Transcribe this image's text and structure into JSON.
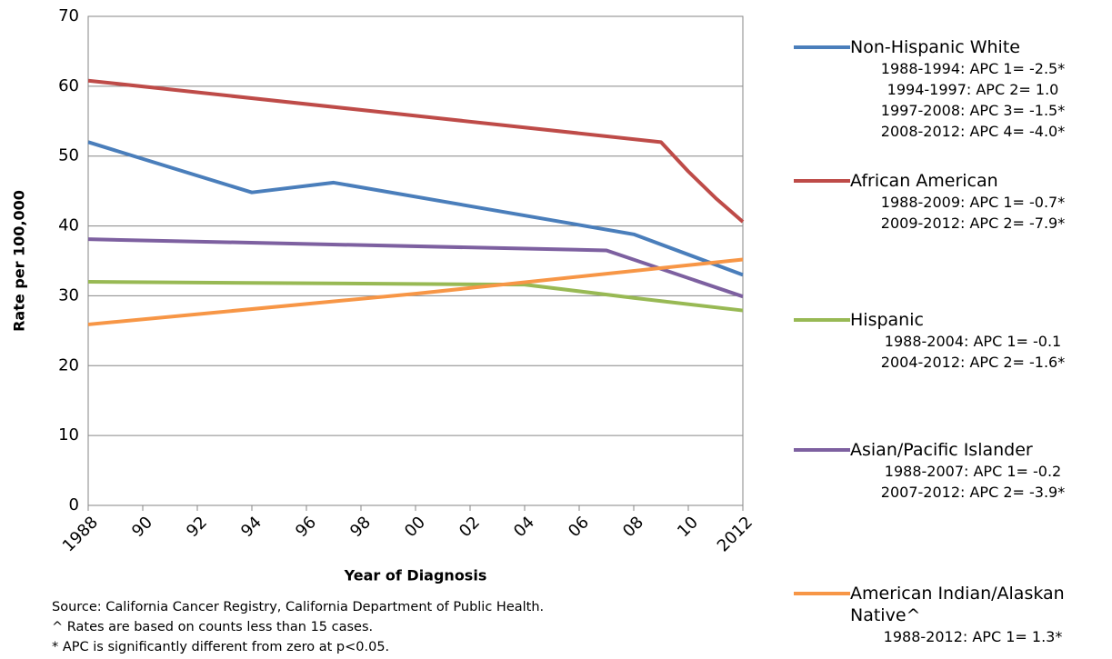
{
  "chart_data": {
    "type": "line",
    "x_label": "Year of Diagnosis",
    "y_label": "Rate per 100,000",
    "xlim": [
      1988,
      2012
    ],
    "xticks": [
      1988,
      {
        "value": 1990,
        "label": "90"
      },
      {
        "value": 1992,
        "label": "92"
      },
      {
        "value": 1994,
        "label": "94"
      },
      {
        "value": 1996,
        "label": "96"
      },
      {
        "value": 1998,
        "label": "98"
      },
      {
        "value": 2000,
        "label": "00"
      },
      {
        "value": 2002,
        "label": "02"
      },
      {
        "value": 2004,
        "label": "04"
      },
      {
        "value": 2006,
        "label": "06"
      },
      {
        "value": 2008,
        "label": "08"
      },
      {
        "value": 2010,
        "label": "10"
      },
      2012
    ],
    "ylim": [
      0,
      70
    ],
    "yticks": [
      0,
      10,
      20,
      30,
      40,
      50,
      60,
      70
    ],
    "grid": true,
    "series": [
      {
        "name": "Non-Hispanic White",
        "color": "#4a7ebb",
        "x": [
          1988,
          1994,
          1997,
          2008,
          2012
        ],
        "values": [
          52.0,
          44.8,
          46.2,
          38.8,
          33.0
        ],
        "apc": [
          "1988-1994: APC 1= -2.5*",
          "1994-1997: APC 2= 1.0",
          "1997-2008: APC 3= -1.5*",
          "2008-2012: APC 4= -4.0*"
        ]
      },
      {
        "name": "African American",
        "color": "#be4b48",
        "x": [
          1988,
          2009,
          2010,
          2011,
          2012
        ],
        "values": [
          60.8,
          52.0,
          47.8,
          44.0,
          40.6
        ],
        "apc": [
          "1988-2009: APC 1= -0.7*",
          "2009-2012: APC 2= -7.9*"
        ]
      },
      {
        "name": "Hispanic",
        "color": "#98b954",
        "x": [
          1988,
          2004,
          2008,
          2012
        ],
        "values": [
          32.0,
          31.6,
          29.7,
          27.9
        ],
        "apc": [
          "1988-2004: APC 1= -0.1",
          "2004-2012: APC 2= -1.6*"
        ]
      },
      {
        "name": "Asian/Pacific Islander",
        "color": "#7d60a0",
        "x": [
          1988,
          2007,
          2012
        ],
        "values": [
          38.1,
          36.5,
          29.9
        ],
        "apc": [
          "1988-2007: APC 1= -0.2",
          "2007-2012: APC 2= -3.9*"
        ]
      },
      {
        "name": "American Indian/Alaskan Native^",
        "color": "#f79646",
        "x": [
          1988,
          2000,
          2012
        ],
        "values": [
          25.9,
          30.3,
          35.2
        ],
        "apc": [
          "1988-2012: APC 1= 1.3*"
        ]
      }
    ],
    "notes": [
      "Source:  California Cancer Registry, California Department of Public Health.",
      "^ Rates are based on counts less than 15 cases.",
      "* APC is significantly different from zero at p<0.05."
    ]
  }
}
